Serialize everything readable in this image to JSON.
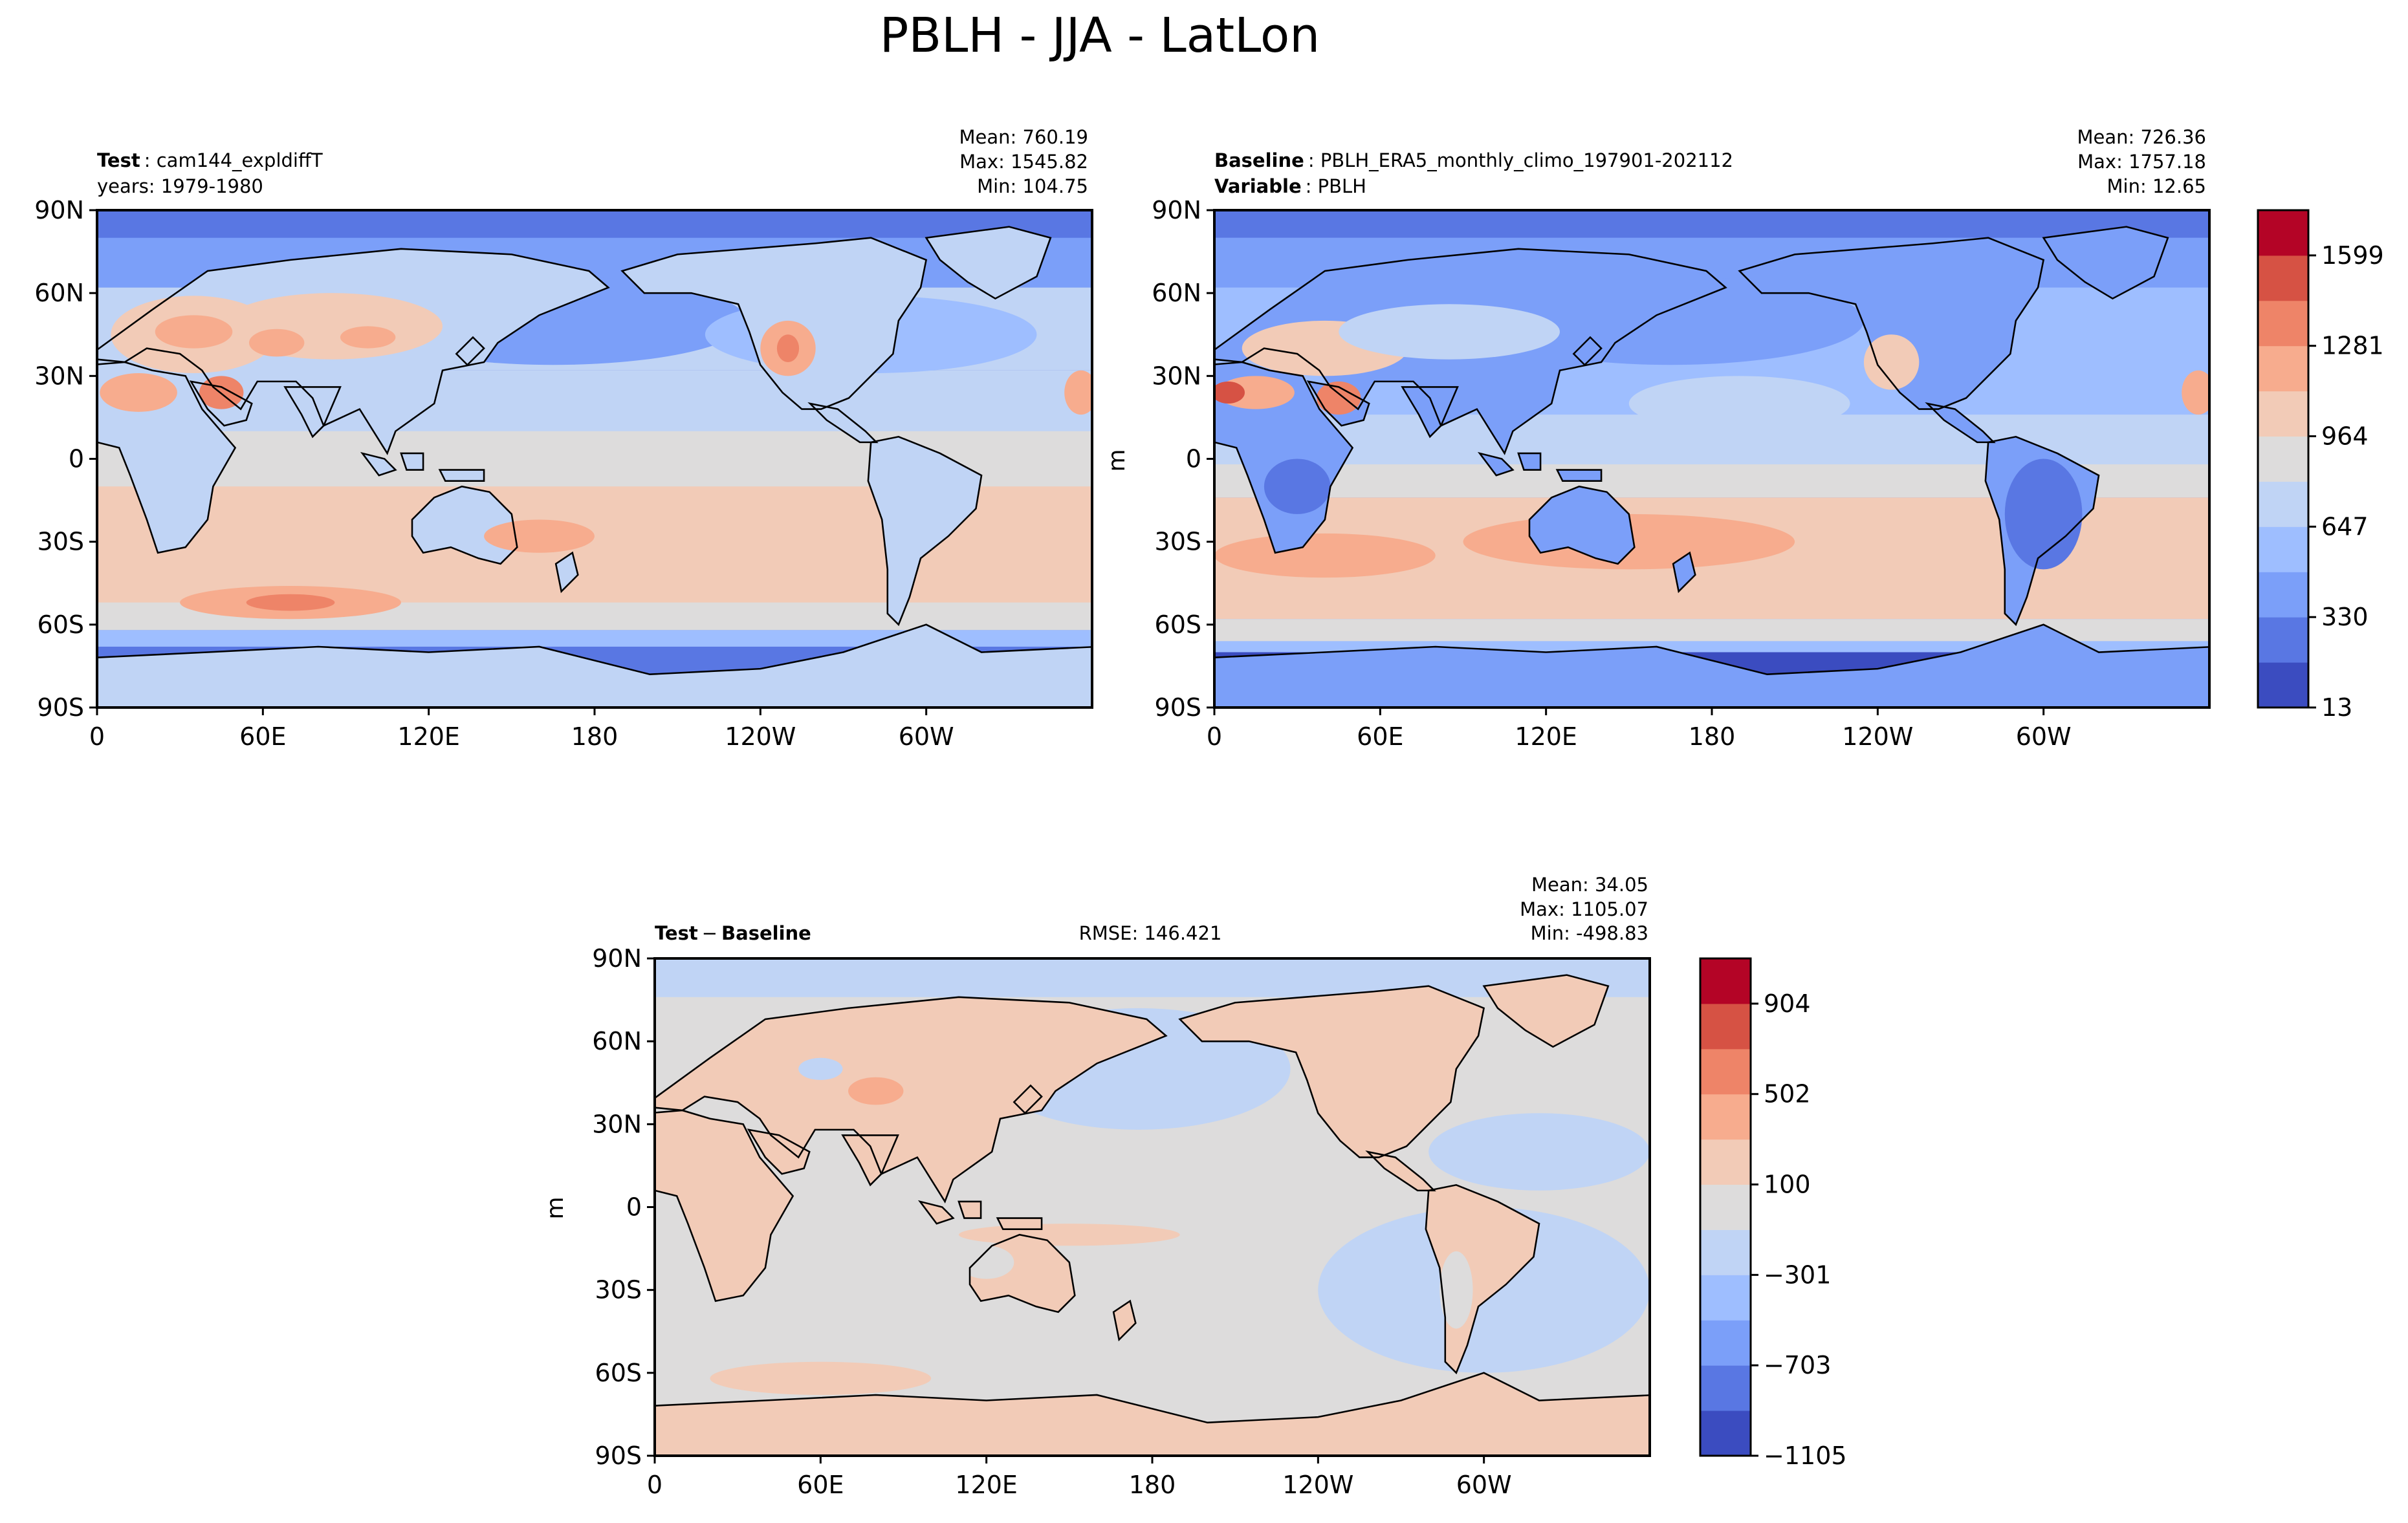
{
  "figure_title": "PBLH - JJA - LatLon",
  "panels": {
    "test": {
      "header_bold": "Test",
      "header_text": "cam144_expldiffT",
      "line2": "years: 1979-1980",
      "mean": "Mean: 760.19",
      "max": "Max: 1545.82",
      "min": "Min: 104.75"
    },
    "baseline": {
      "header_bold": "Baseline",
      "header_text": "PBLH_ERA5_monthly_climo_197901-202112",
      "line2_bold": "Variable",
      "line2_text": "PBLH",
      "mean": "Mean: 726.36",
      "max": "Max: 1757.18",
      "min": "Min: 12.65",
      "units": "m"
    },
    "diff": {
      "header_bold": "Test",
      "header_sep": "−",
      "header_bold2": "Baseline",
      "rmse": "RMSE: 146.421",
      "mean": "Mean: 34.05",
      "max": "Max: 1105.07",
      "min": "Min: -498.83",
      "units": "m"
    }
  },
  "colors": {
    "coolwarm_11": [
      "#3b4cc0",
      "#5977e3",
      "#7b9ff9",
      "#9ebeff",
      "#c0d4f5",
      "#dddcdc",
      "#f2cbb7",
      "#f7ac8e",
      "#ee8468",
      "#d65244",
      "#b40426"
    ],
    "land_outline": "#000000"
  },
  "chart_data": [
    {
      "type": "heatmap",
      "name": "test",
      "xlabel": "",
      "ylabel": "",
      "x_ticks": [
        "0",
        "60E",
        "120E",
        "180",
        "120W",
        "60W"
      ],
      "y_ticks": [
        "90N",
        "60N",
        "30N",
        "0",
        "30S",
        "60S",
        "90S"
      ],
      "xlim": [
        0,
        360
      ],
      "ylim": [
        -90,
        90
      ]
    },
    {
      "type": "heatmap",
      "name": "baseline",
      "xlabel": "",
      "ylabel": "m",
      "x_ticks": [
        "0",
        "60E",
        "120E",
        "180",
        "120W",
        "60W"
      ],
      "y_ticks": [
        "90N",
        "60N",
        "30N",
        "0",
        "30S",
        "60S",
        "90S"
      ],
      "xlim": [
        0,
        360
      ],
      "ylim": [
        -90,
        90
      ],
      "colorbar": {
        "levels": 11,
        "tick_labels": [
          "13",
          "330",
          "647",
          "964",
          "1281",
          "1599"
        ],
        "range": [
          13,
          1757
        ]
      }
    },
    {
      "type": "heatmap",
      "name": "diff",
      "xlabel": "",
      "ylabel": "m",
      "x_ticks": [
        "0",
        "60E",
        "120E",
        "180",
        "120W",
        "60W"
      ],
      "y_ticks": [
        "90N",
        "60N",
        "30N",
        "0",
        "30S",
        "60S",
        "90S"
      ],
      "xlim": [
        0,
        360
      ],
      "ylim": [
        -90,
        90
      ],
      "colorbar": {
        "levels": 11,
        "tick_labels": [
          "−1105",
          "−703",
          "−301",
          "100",
          "502",
          "904"
        ],
        "range": [
          -1105,
          1105
        ]
      }
    }
  ]
}
